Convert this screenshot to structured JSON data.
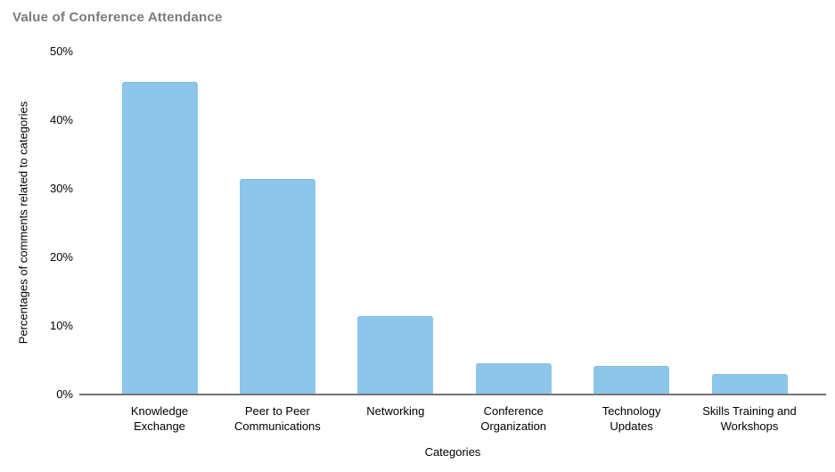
{
  "chart_data": {
    "type": "bar",
    "title": "Value of Conference Attendance",
    "categories": [
      "Knowledge Exchange",
      "Peer to Peer Communications",
      "Networking",
      "Conference Organization",
      "Technology Updates",
      "Skills Training and Workshops"
    ],
    "category_label_lines": [
      [
        "Knowledge",
        "Exchange"
      ],
      [
        "Peer to Peer",
        "Communications"
      ],
      [
        "Networking"
      ],
      [
        "Conference",
        "Organization"
      ],
      [
        "Technology",
        "Updates"
      ],
      [
        "Skills Training and",
        "Workshops"
      ]
    ],
    "values": [
      45.5,
      31.3,
      11.3,
      4.4,
      4.0,
      2.8
    ],
    "xlabel": "Categories",
    "ylabel": "Percentages of comments related to categories",
    "ylim": [
      0,
      50
    ],
    "y_ticks": [
      0,
      10,
      20,
      30,
      40,
      50
    ],
    "ytick_labels": [
      "0%",
      "10%",
      "20%",
      "30%",
      "40%",
      "50%"
    ],
    "grid": false,
    "legend": "none",
    "bar_color": "#8CC6EA",
    "bar_border_color": "#7FB9DF",
    "axis_line_color": "#757575",
    "title_color": "#7B7B7B",
    "text_color": "#000000",
    "background": "#FFFFFF"
  }
}
